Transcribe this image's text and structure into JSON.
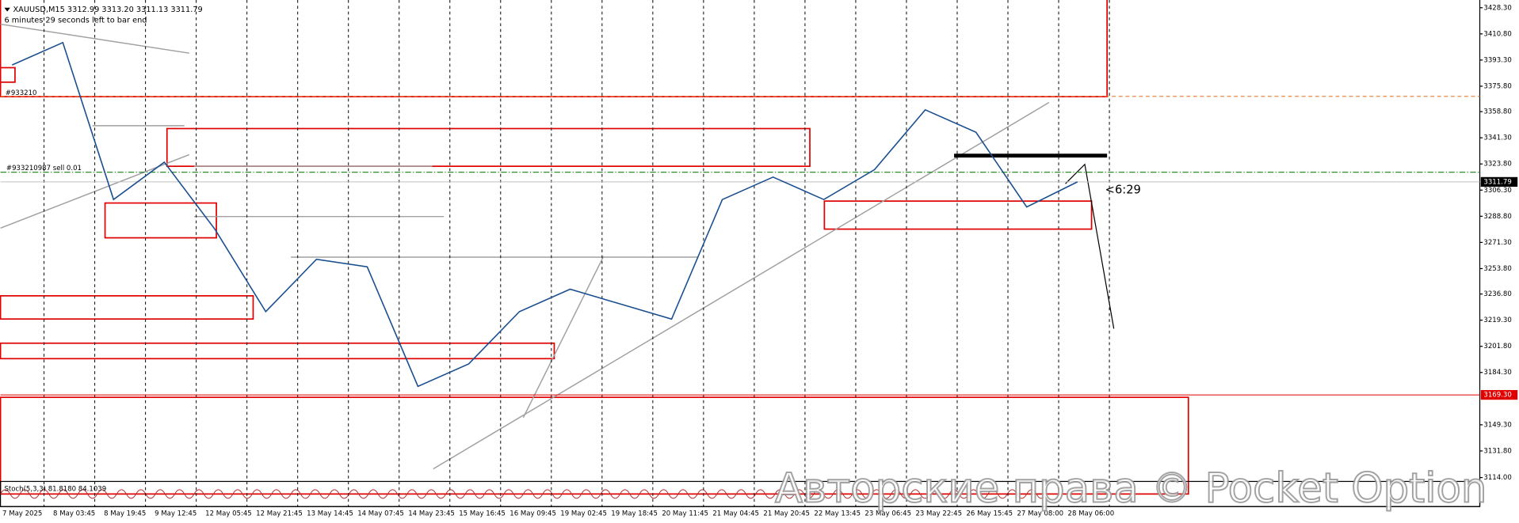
{
  "chart_data": {
    "type": "line",
    "title": "XAUUSD,M15  3312.99 3313.20 3311.13 3311.79",
    "subtitle": "6 minutes 29 seconds left to bar end",
    "order_label": "#933210987 sell 0.01",
    "order_label_short": "#933210",
    "timer_label": "<6:29",
    "indicator_label": "Stoch(5,3,3) 81.8180 84.1039",
    "watermark": "Авторские права © Pocket Option",
    "categories": [
      "7 May 2025",
      "8 May 03:45",
      "8 May 19:45",
      "9 May 12:45",
      "12 May 05:45",
      "12 May 21:45",
      "13 May 14:45",
      "14 May 07:45",
      "14 May 23:45",
      "15 May 16:45",
      "16 May 09:45",
      "19 May 02:45",
      "19 May 18:45",
      "20 May 11:45",
      "21 May 04:45",
      "21 May 20:45",
      "22 May 13:45",
      "23 May 06:45",
      "23 May 22:45",
      "26 May 15:45",
      "27 May 08:00",
      "28 May 06:00"
    ],
    "values": [
      3390,
      3405,
      3300,
      3325,
      3280,
      3225,
      3260,
      3255,
      3175,
      3190,
      3225,
      3240,
      3230,
      3220,
      3300,
      3315,
      3300,
      3320,
      3360,
      3345,
      3295,
      3311.79
    ],
    "color": "#1a4f8f",
    "ylim": [
      3114,
      3428.3
    ],
    "yticks": [
      {
        "value": 3428.3,
        "label": "3428.30"
      },
      {
        "value": 3410.8,
        "label": "3410.80"
      },
      {
        "value": 3393.3,
        "label": "3393.30"
      },
      {
        "value": 3375.8,
        "label": "3375.80"
      },
      {
        "value": 3358.8,
        "label": "3358.80"
      },
      {
        "value": 3341.3,
        "label": "3341.30"
      },
      {
        "value": 3323.8,
        "label": "3323.80"
      },
      {
        "value": 3306.3,
        "label": "3306.30"
      },
      {
        "value": 3288.8,
        "label": "3288.80"
      },
      {
        "value": 3271.3,
        "label": "3271.30"
      },
      {
        "value": 3253.8,
        "label": "3253.80"
      },
      {
        "value": 3236.8,
        "label": "3236.80"
      },
      {
        "value": 3219.3,
        "label": "3219.30"
      },
      {
        "value": 3201.8,
        "label": "3201.80"
      },
      {
        "value": 3184.3,
        "label": "3184.30"
      },
      {
        "value": 3149.3,
        "label": "3149.30"
      },
      {
        "value": 3131.8,
        "label": "3131.80"
      },
      {
        "value": 3114,
        "label": "3114.00"
      }
    ],
    "current_price": 3311.79,
    "alert_price": {
      "value": 3169.3,
      "label": "3169.30"
    },
    "order_lines": [
      {
        "value": 3369,
        "color": "#e07b39"
      },
      {
        "value": 3318.3,
        "color": "#2e8b2e"
      }
    ]
  }
}
